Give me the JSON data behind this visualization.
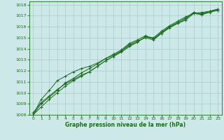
{
  "title": "Graphe pression niveau de la mer (hPa)",
  "background_color": "#cce8e8",
  "grid_color": "#aacccc",
  "line_color": "#1a6b1a",
  "xlim": [
    -0.5,
    23.5
  ],
  "ylim": [
    1008,
    1018.3
  ],
  "xticks": [
    0,
    1,
    2,
    3,
    4,
    5,
    6,
    7,
    8,
    9,
    10,
    11,
    12,
    13,
    14,
    15,
    16,
    17,
    18,
    19,
    20,
    21,
    22,
    23
  ],
  "yticks": [
    1008,
    1009,
    1010,
    1011,
    1012,
    1013,
    1014,
    1015,
    1016,
    1017,
    1018
  ],
  "series": [
    [
      1008.2,
      1009.1,
      1009.7,
      1010.3,
      1010.8,
      1011.2,
      1011.6,
      1011.9,
      1012.4,
      1012.9,
      1013.3,
      1013.7,
      1014.2,
      1014.6,
      1015.1,
      1015.0,
      1015.6,
      1016.1,
      1016.5,
      1016.9,
      1017.2,
      1017.3,
      1017.4,
      1017.5
    ],
    [
      1008.0,
      1009.0,
      1009.6,
      1010.2,
      1010.9,
      1011.3,
      1011.8,
      1012.2,
      1012.6,
      1013.1,
      1013.5,
      1013.9,
      1014.5,
      1014.8,
      1015.2,
      1014.9,
      1015.5,
      1016.0,
      1016.4,
      1016.8,
      1017.3,
      1017.2,
      1017.4,
      1017.6
    ],
    [
      1008.0,
      1009.4,
      1010.2,
      1011.1,
      1011.5,
      1011.9,
      1012.2,
      1012.4,
      1012.7,
      1013.1,
      1013.4,
      1013.8,
      1014.3,
      1014.6,
      1015.1,
      1014.9,
      1015.4,
      1016.0,
      1016.3,
      1016.7,
      1017.3,
      1017.1,
      1017.4,
      1017.6
    ],
    [
      1008.0,
      1008.7,
      1009.4,
      1010.0,
      1010.6,
      1011.1,
      1011.5,
      1011.9,
      1012.4,
      1012.9,
      1013.3,
      1013.8,
      1014.4,
      1014.7,
      1015.0,
      1014.8,
      1015.4,
      1015.9,
      1016.3,
      1016.6,
      1017.2,
      1017.1,
      1017.3,
      1017.5
    ]
  ]
}
